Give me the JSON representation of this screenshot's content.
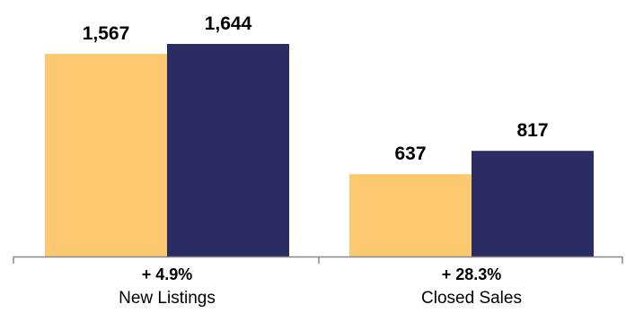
{
  "chart_data": {
    "type": "bar",
    "categories": [
      "New Listings",
      "Closed Sales"
    ],
    "changes": [
      "+ 4.9%",
      "+ 28.3%"
    ],
    "series": [
      {
        "values": [
          1567,
          637
        ],
        "labels": [
          "1,567",
          "637"
        ],
        "color": "#FDC970"
      },
      {
        "values": [
          1644,
          817
        ],
        "labels": [
          "1,644",
          "817"
        ],
        "color": "#2B2C63"
      }
    ],
    "ylim": [
      0,
      1644
    ],
    "grid": false,
    "legend": false,
    "axis_color": "#888888"
  }
}
